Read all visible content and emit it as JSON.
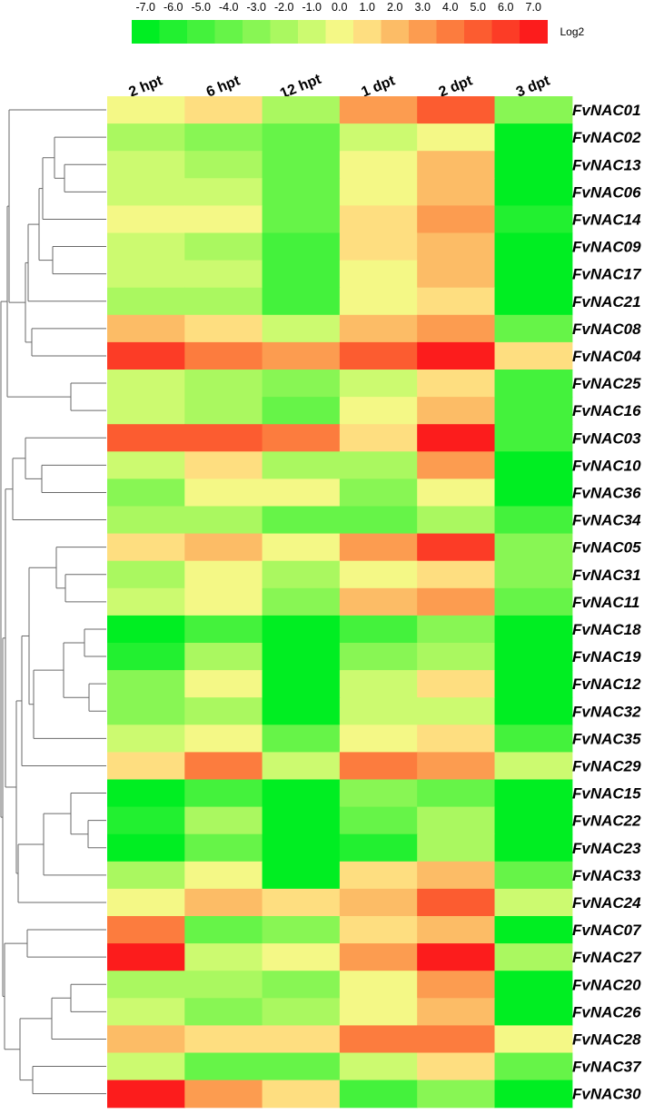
{
  "chart_data": {
    "type": "heatmap",
    "legend_title": "Log2",
    "scale_ticks": [
      "-7.0",
      "-6.0",
      "-5.0",
      "-4.0",
      "-3.0",
      "-2.0",
      "-1.0",
      "0.0",
      "1.0",
      "2.0",
      "3.0",
      "4.0",
      "5.0",
      "6.0",
      "7.0"
    ],
    "scale_colors": [
      "#00ee22",
      "#22f030",
      "#44f23c",
      "#66f448",
      "#88f654",
      "#aaf860",
      "#ccfa70",
      "#f4f886",
      "#fede80",
      "#fcbc66",
      "#fc9c50",
      "#fc7c3e",
      "#fc5c30",
      "#fc3c26",
      "#fc1c1c"
    ],
    "columns": [
      "2 hpt",
      "6 hpt",
      "12 hpt",
      "1 dpt",
      "2 dpt",
      "3 dpt"
    ],
    "rows": [
      "FvNAC01",
      "FvNAC02",
      "FvNAC13",
      "FvNAC06",
      "FvNAC14",
      "FvNAC09",
      "FvNAC17",
      "FvNAC21",
      "FvNAC08",
      "FvNAC04",
      "FvNAC25",
      "FvNAC16",
      "FvNAC03",
      "FvNAC10",
      "FvNAC36",
      "FvNAC34",
      "FvNAC05",
      "FvNAC31",
      "FvNAC11",
      "FvNAC18",
      "FvNAC19",
      "FvNAC12",
      "FvNAC32",
      "FvNAC35",
      "FvNAC29",
      "FvNAC15",
      "FvNAC22",
      "FvNAC23",
      "FvNAC33",
      "FvNAC24",
      "FvNAC07",
      "FvNAC27",
      "FvNAC20",
      "FvNAC26",
      "FvNAC28",
      "FvNAC37",
      "FvNAC30"
    ],
    "values": [
      [
        0,
        1,
        -2,
        3,
        5,
        -3
      ],
      [
        -2,
        -3,
        -4,
        -1,
        0,
        -7
      ],
      [
        -1,
        -2,
        -4,
        0,
        2,
        -7
      ],
      [
        -1,
        -1,
        -4,
        0,
        2,
        -7
      ],
      [
        0,
        0,
        -4,
        1,
        3,
        -6
      ],
      [
        -1,
        -2,
        -5,
        1,
        2,
        -7
      ],
      [
        -1,
        -1,
        -5,
        0,
        2,
        -7
      ],
      [
        -2,
        -2,
        -5,
        0,
        1,
        -7
      ],
      [
        2,
        1,
        -1,
        2,
        3,
        -4
      ],
      [
        6,
        4,
        3,
        5,
        7,
        1
      ],
      [
        -1,
        -2,
        -3,
        -1,
        1,
        -5
      ],
      [
        -1,
        -2,
        -4,
        0,
        2,
        -5
      ],
      [
        5,
        5,
        4,
        1,
        7,
        -5
      ],
      [
        -1,
        1,
        -2,
        -2,
        3,
        -7
      ],
      [
        -3,
        0,
        0,
        -3,
        0,
        -7
      ],
      [
        -2,
        -2,
        -4,
        -4,
        -2,
        -5
      ],
      [
        1,
        2,
        0,
        3,
        6,
        -3
      ],
      [
        -2,
        0,
        -2,
        0,
        1,
        -3
      ],
      [
        -1,
        0,
        -3,
        2,
        3,
        -4
      ],
      [
        -7,
        -5,
        -7,
        -5,
        -3,
        -7
      ],
      [
        -6,
        -2,
        -7,
        -3,
        -2,
        -7
      ],
      [
        -3,
        0,
        -7,
        -1,
        1,
        -7
      ],
      [
        -3,
        -2,
        -7,
        -1,
        -1,
        -7
      ],
      [
        -1,
        0,
        -4,
        0,
        1,
        -5
      ],
      [
        1,
        4,
        -1,
        4,
        3,
        -1
      ],
      [
        -7,
        -5,
        -7,
        -3,
        -4,
        -7
      ],
      [
        -6,
        -2,
        -7,
        -4,
        -2,
        -7
      ],
      [
        -7,
        -4,
        -7,
        -6,
        -2,
        -7
      ],
      [
        -2,
        0,
        -7,
        1,
        2,
        -4
      ],
      [
        0,
        2,
        1,
        2,
        5,
        -1
      ],
      [
        4,
        -4,
        -3,
        1,
        2,
        -7
      ],
      [
        7,
        -1,
        0,
        3,
        7,
        -2
      ],
      [
        -2,
        -2,
        -3,
        0,
        3,
        -7
      ],
      [
        -1,
        -3,
        -2,
        0,
        2,
        -7
      ],
      [
        2,
        1,
        1,
        4,
        4,
        0
      ],
      [
        -1,
        -4,
        -4,
        -1,
        1,
        -4
      ],
      [
        7,
        3,
        1,
        -5,
        -3,
        -7
      ]
    ]
  }
}
